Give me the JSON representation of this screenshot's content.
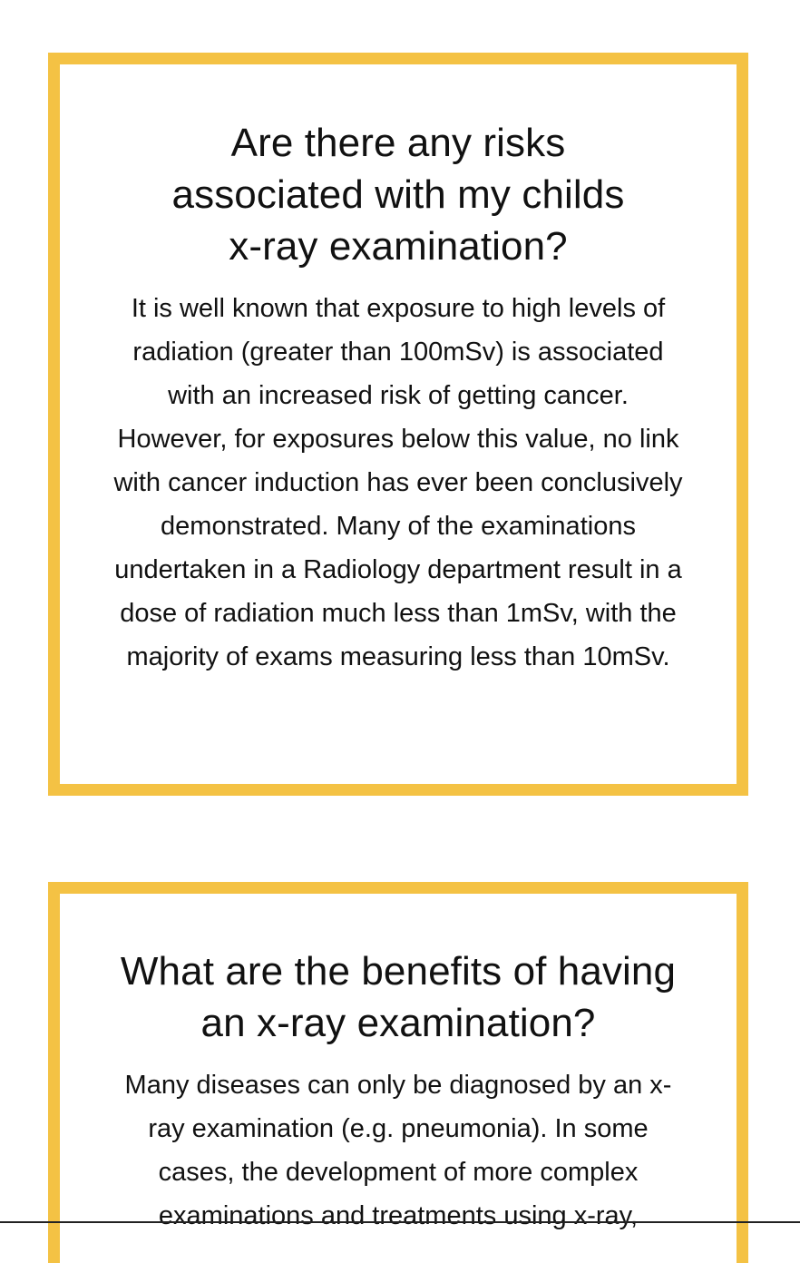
{
  "sections": [
    {
      "title": "Are there any risks associated with my childs x-ray examination?",
      "body": "It is well known that exposure to high levels of radiation (greater than 100mSv) is associated with an increased risk of getting cancer. However, for exposures below this value, no link with cancer induction has ever been conclusively demonstrated. Many of the examinations undertaken in a Radiology department result in a dose of radiation much less than 1mSv, with the majority of exams measuring less than 10mSv."
    },
    {
      "title": "What are the benefits of having an x-ray examination?",
      "body": "Many diseases can only be diagnosed by an x-ray examination (e.g. pneumonia). In some cases, the development of more complex examinations and treatments using x-ray,"
    }
  ],
  "colors": {
    "card_border": "#f4c244",
    "text": "#111111",
    "background": "#ffffff"
  }
}
